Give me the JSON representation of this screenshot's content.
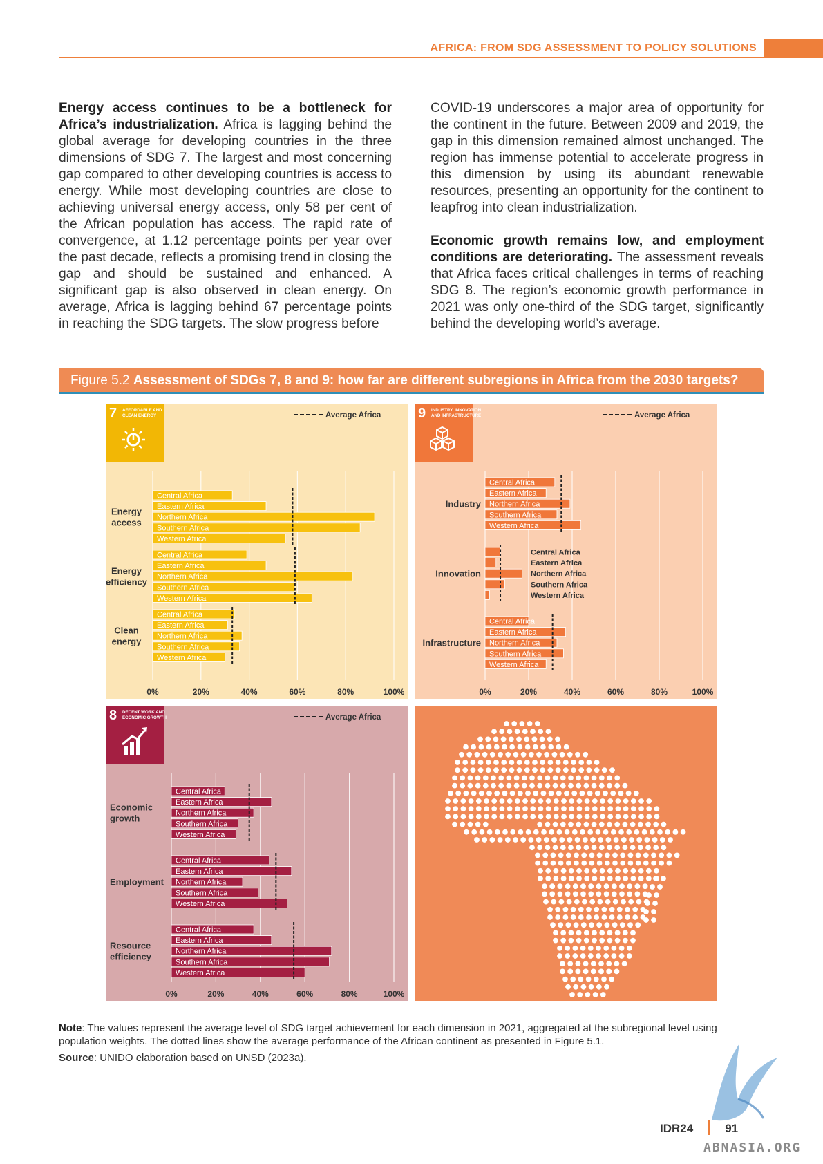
{
  "header": {
    "running_title": "AFRICA: FROM SDG ASSESSMENT TO POLICY SOLUTIONS"
  },
  "text": {
    "left_p1_bold": "Energy access continues to be a bottleneck for Africa’s industrialization.",
    "left_p1_body": " Africa is lagging behind the global average for developing countries in the three dimensions of SDG 7. The largest and most concerning gap compared to other developing countries is access to energy. While most developing countries are close to achieving universal energy access, only 58 per cent of the African population has access. The rapid rate of convergence, at 1.12 percentage points per year over the past decade, reflects a promising trend in closing the gap and should be sustained and enhanced. A significant gap is also observed in clean energy. On average, Africa is lagging behind 67 percentage points in reaching the SDG targets. The slow progress before",
    "right_p1": "COVID-19 underscores a major area of opportunity for the continent in the future. Between 2009 and 2019, the gap in this dimension remained almost unchanged. The region has immense potential to accelerate progress in this dimension by using its abundant renewable resources, presenting an opportunity for the continent to leapfrog into clean industrialization.",
    "right_p2_bold": "Economic growth remains low, and employment conditions are deteriorating.",
    "right_p2_body": " The assessment reveals that Africa faces critical challenges in terms of reaching SDG 8. The region’s economic growth performance in 2021 was only one-third of the SDG target, significantly behind the developing world’s average."
  },
  "figure": {
    "label": "Figure 5.2",
    "title": "Assessment of SDGs 7, 8 and 9: how far are different subregions in Africa from the 2030 targets?"
  },
  "chart_data": [
    {
      "type": "bar",
      "orientation": "horizontal",
      "goal_number": "7",
      "goal_name": "AFFORDABLE AND CLEAN ENERGY",
      "legend": "Average Africa",
      "legend_position": "top-right",
      "bar_color": "#f7c10f",
      "background": "#fce5b6",
      "xlim": [
        0,
        100
      ],
      "x_ticks": [
        "0%",
        "20%",
        "40%",
        "60%",
        "80%",
        "100%"
      ],
      "groups": [
        {
          "name": "Energy access",
          "average": 58,
          "items": [
            {
              "label": "Central Africa",
              "value": 33
            },
            {
              "label": "Eastern Africa",
              "value": 47
            },
            {
              "label": "Northern Africa",
              "value": 92
            },
            {
              "label": "Southern Africa",
              "value": 86
            },
            {
              "label": "Western Africa",
              "value": 55
            }
          ]
        },
        {
          "name": "Energy efficiency",
          "average": 59,
          "items": [
            {
              "label": "Central Africa",
              "value": 39
            },
            {
              "label": "Eastern Africa",
              "value": 47
            },
            {
              "label": "Northern Africa",
              "value": 83
            },
            {
              "label": "Southern Africa",
              "value": 59
            },
            {
              "label": "Western Africa",
              "value": 66
            }
          ]
        },
        {
          "name": "Clean energy",
          "average": 33,
          "items": [
            {
              "label": "Central Africa",
              "value": 34
            },
            {
              "label": "Eastern Africa",
              "value": 31
            },
            {
              "label": "Northern Africa",
              "value": 37
            },
            {
              "label": "Southern Africa",
              "value": 36
            },
            {
              "label": "Western Africa",
              "value": 30
            }
          ]
        }
      ]
    },
    {
      "type": "bar",
      "orientation": "horizontal",
      "goal_number": "9",
      "goal_name": "INDUSTRY, INNOVATION AND INFRASTRUCTURE",
      "legend": "Average Africa",
      "legend_position": "top-right",
      "bar_color": "#f0773a",
      "background": "#fbcfb1",
      "xlim": [
        0,
        100
      ],
      "x_ticks": [
        "0%",
        "20%",
        "40%",
        "60%",
        "80%",
        "100%"
      ],
      "groups": [
        {
          "name": "Industry",
          "average": 35,
          "items": [
            {
              "label": "Central Africa",
              "value": 32
            },
            {
              "label": "Eastern Africa",
              "value": 28
            },
            {
              "label": "Northern Africa",
              "value": 39
            },
            {
              "label": "Southern Africa",
              "value": 33
            },
            {
              "label": "Western Africa",
              "value": 44
            }
          ]
        },
        {
          "name": "Innovation",
          "average": 7,
          "items": [
            {
              "label": "Central Africa",
              "value": 7
            },
            {
              "label": "Eastern Africa",
              "value": 5
            },
            {
              "label": "Northern Africa",
              "value": 17
            },
            {
              "label": "Southern Africa",
              "value": 9
            },
            {
              "label": "Western Africa",
              "value": 2
            }
          ]
        },
        {
          "name": "Infrastructure",
          "average": 31,
          "items": [
            {
              "label": "Central Africa",
              "value": 20
            },
            {
              "label": "Eastern Africa",
              "value": 37
            },
            {
              "label": "Northern Africa",
              "value": 33
            },
            {
              "label": "Southern Africa",
              "value": 36
            },
            {
              "label": "Western Africa",
              "value": 28
            }
          ]
        }
      ]
    },
    {
      "type": "bar",
      "orientation": "horizontal",
      "goal_number": "8",
      "goal_name": "DECENT WORK AND ECONOMIC GROWTH",
      "legend": "Average Africa",
      "legend_position": "top-right",
      "bar_color": "#a41f42",
      "background": "#d7a9ab",
      "xlim": [
        0,
        100
      ],
      "x_ticks": [
        "0%",
        "20%",
        "40%",
        "60%",
        "80%",
        "100%"
      ],
      "groups": [
        {
          "name": "Economic growth",
          "average": 35,
          "items": [
            {
              "label": "Central Africa",
              "value": 24
            },
            {
              "label": "Eastern Africa",
              "value": 45
            },
            {
              "label": "Northern Africa",
              "value": 37
            },
            {
              "label": "Southern Africa",
              "value": 30
            },
            {
              "label": "Western Africa",
              "value": 29
            }
          ]
        },
        {
          "name": "Employment",
          "average": 47,
          "items": [
            {
              "label": "Central Africa",
              "value": 44
            },
            {
              "label": "Eastern Africa",
              "value": 54
            },
            {
              "label": "Northern Africa",
              "value": 32
            },
            {
              "label": "Southern Africa",
              "value": 39
            },
            {
              "label": "Western Africa",
              "value": 52
            }
          ]
        },
        {
          "name": "Resource efficiency",
          "average": 55,
          "items": [
            {
              "label": "Central Africa",
              "value": 37
            },
            {
              "label": "Eastern Africa",
              "value": 45
            },
            {
              "label": "Northern Africa",
              "value": 72
            },
            {
              "label": "Southern Africa",
              "value": 71
            },
            {
              "label": "Western Africa",
              "value": 60
            }
          ]
        }
      ]
    }
  ],
  "note": {
    "label": "Note",
    "text": ": The values represent the average level of SDG target achievement for each dimension in 2021, aggregated at the subregional level using population weights. The dotted lines show the average performance of the African continent as presented in Figure 5.1."
  },
  "source": {
    "label": "Source",
    "text": ": UNIDO elaboration based on UNSD (2023a)."
  },
  "footer": {
    "report": "IDR24",
    "page": "91",
    "watermark": "ABNASIA.ORG"
  },
  "colors": {
    "accent": "#ee7f3a",
    "map_background": "#f08a57"
  }
}
